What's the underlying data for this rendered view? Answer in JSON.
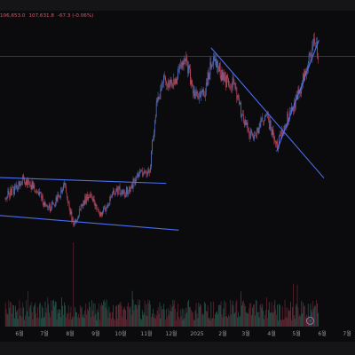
{
  "legend": {
    "values": [
      "106,653.0",
      "107,631.8",
      "-67.3 (-0.06%)"
    ]
  },
  "icons": {
    "scroll_to_latest": "chevron-right-icon"
  },
  "colors": {
    "background": "#0b0b0d",
    "up": "#5f78c6",
    "down": "#c84a5f",
    "trendline": "#4a6ef0",
    "price_line": "#3a4fb5",
    "axis_text": "#9a9aa2"
  },
  "chart_data": {
    "type": "candlestick",
    "x_type": "time",
    "x_tick_labels": [
      "6월",
      "7월",
      "8월",
      "9월",
      "10월",
      "11월",
      "12월",
      "2025",
      "2월",
      "3월",
      "4월",
      "5월",
      "6월",
      "7월"
    ],
    "ylim": [
      45000,
      118000
    ],
    "price_series": [
      [
        "2024-05-15",
        61200
      ],
      [
        "2024-05-25",
        63500
      ],
      [
        "2024-06-05",
        66800
      ],
      [
        "2024-06-15",
        65100
      ],
      [
        "2024-06-25",
        61800
      ],
      [
        "2024-07-05",
        57100
      ],
      [
        "2024-07-15",
        59900
      ],
      [
        "2024-07-25",
        64900
      ],
      [
        "2024-08-05",
        52100
      ],
      [
        "2024-08-15",
        58600
      ],
      [
        "2024-08-25",
        62800
      ],
      [
        "2024-09-05",
        55900
      ],
      [
        "2024-09-15",
        58400
      ],
      [
        "2024-09-25",
        63900
      ],
      [
        "2024-10-05",
        62100
      ],
      [
        "2024-10-15",
        65200
      ],
      [
        "2024-10-25",
        68900
      ],
      [
        "2024-11-05",
        69800
      ],
      [
        "2024-11-12",
        88400
      ],
      [
        "2024-11-22",
        98200
      ],
      [
        "2024-12-05",
        96900
      ],
      [
        "2024-12-17",
        106100
      ],
      [
        "2024-12-30",
        92800
      ],
      [
        "2025-01-10",
        94600
      ],
      [
        "2025-01-21",
        105800
      ],
      [
        "2025-02-03",
        98000
      ],
      [
        "2025-02-15",
        97200
      ],
      [
        "2025-02-26",
        84800
      ],
      [
        "2025-03-10",
        80100
      ],
      [
        "2025-03-25",
        87500
      ],
      [
        "2025-04-07",
        77200
      ],
      [
        "2025-04-22",
        87200
      ],
      [
        "2025-05-05",
        94400
      ],
      [
        "2025-05-15",
        103600
      ],
      [
        "2025-05-22",
        110900
      ],
      [
        "2025-05-27",
        106700
      ]
    ],
    "trendlines": [
      {
        "from": [
          "2024-05-01",
          67500
        ],
        "to": [
          "2024-11-25",
          65600
        ]
      },
      {
        "from": [
          "2024-05-01",
          55600
        ],
        "to": [
          "2024-12-10",
          50800
        ]
      },
      {
        "from": [
          "2025-01-18",
          108500
        ],
        "to": [
          "2025-06-03",
          67300
        ]
      },
      {
        "from": [
          "2025-04-07",
          75700
        ],
        "to": [
          "2025-05-28",
          110900
        ]
      }
    ],
    "horizontal_lines": [
      105800
    ],
    "volume": {
      "typical": 28,
      "max": 100,
      "spike_date": "2024-08-05"
    }
  }
}
